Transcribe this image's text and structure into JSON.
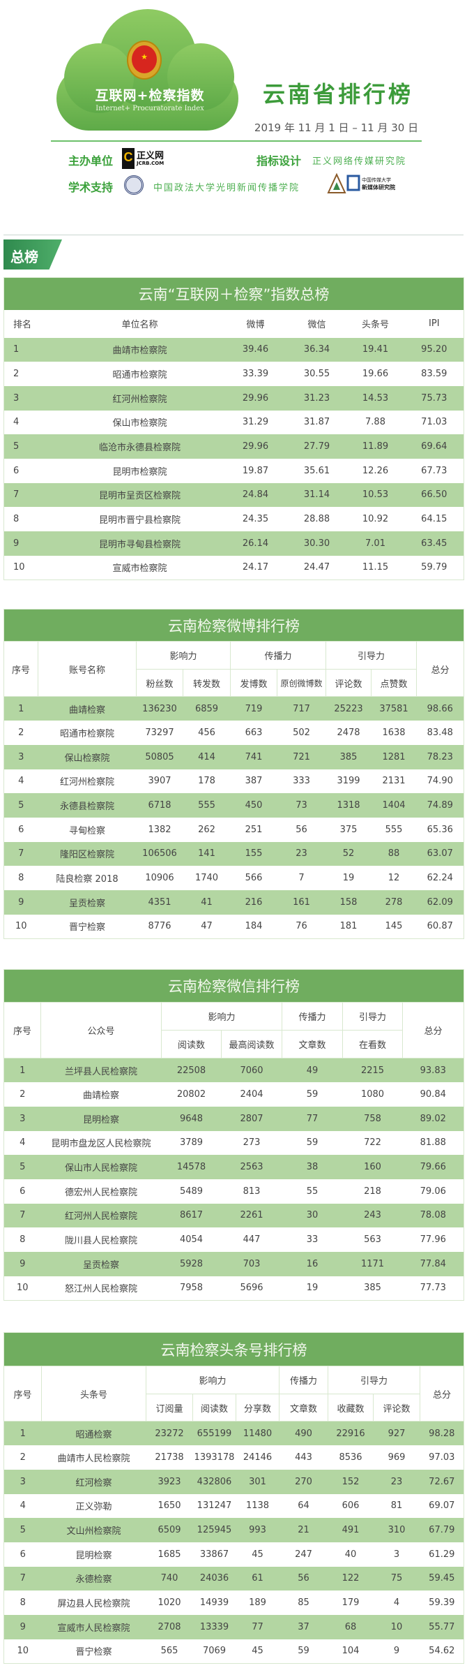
{
  "colors": {
    "accent": "#70ad5f",
    "row_alt": "#b3d6a2",
    "title_green": "#3c9b3a"
  },
  "header": {
    "cloud_title_cn": "互联网+检察指数",
    "cloud_title_en": "Internet+ Procuratorate Index",
    "title": "云南省排行榜",
    "date": "2019 年 11 月 1 日 – 11 月 30 日",
    "sponsor_label": "主办单位",
    "sponsor_logo": "正义网",
    "sponsor_logo_sub": "JCRB.COM",
    "design_label": "指标设计",
    "design_value": "正义网络传媒研究院",
    "academic_label": "学术支持",
    "academic_value": "中国政法大学光明新闻传播学院",
    "cuc_logo": "中国传媒大学 新媒体研究院"
  },
  "section_tag": "总榜",
  "tables": [
    {
      "title": "云南“互联网＋检察”指数总榜",
      "columns": [
        "排名",
        "单位名称",
        "微博",
        "微信",
        "头条号",
        "IPI"
      ],
      "rows": [
        [
          "1",
          "曲靖市检察院",
          "39.46",
          "36.34",
          "19.41",
          "95.20"
        ],
        [
          "2",
          "昭通市检察院",
          "33.39",
          "30.55",
          "19.66",
          "83.59"
        ],
        [
          "3",
          "红河州检察院",
          "29.96",
          "31.23",
          "14.53",
          "75.73"
        ],
        [
          "4",
          "保山市检察院",
          "31.29",
          "31.87",
          "7.88",
          "71.03"
        ],
        [
          "5",
          "临沧市永德县检察院",
          "29.96",
          "27.79",
          "11.89",
          "69.64"
        ],
        [
          "6",
          "昆明市检察院",
          "19.87",
          "35.61",
          "12.26",
          "67.73"
        ],
        [
          "7",
          "昆明市呈贡区检察院",
          "24.84",
          "31.14",
          "10.53",
          "66.50"
        ],
        [
          "8",
          "昆明市晋宁县检察院",
          "24.35",
          "28.88",
          "10.92",
          "64.15"
        ],
        [
          "9",
          "昆明市寻甸县检察院",
          "26.14",
          "30.30",
          "7.01",
          "63.45"
        ],
        [
          "10",
          "宣威市检察院",
          "24.17",
          "24.47",
          "11.15",
          "59.79"
        ]
      ]
    },
    {
      "title": "云南检察微博排行榜",
      "col_no": "序号",
      "col_name": "账号名称",
      "col_total": "总分",
      "groups": [
        "影响力",
        "传播力",
        "引导力"
      ],
      "subcolumns": [
        "粉丝数",
        "转发数",
        "发博数",
        "原创微博数",
        "评论数",
        "点赞数"
      ],
      "rows": [
        [
          "1",
          "曲靖检察",
          "136230",
          "6859",
          "719",
          "717",
          "25223",
          "37581",
          "98.66"
        ],
        [
          "2",
          "昭通市检察院",
          "73297",
          "456",
          "663",
          "502",
          "2478",
          "1638",
          "83.48"
        ],
        [
          "3",
          "保山检察院",
          "50805",
          "414",
          "741",
          "721",
          "385",
          "1281",
          "78.23"
        ],
        [
          "4",
          "红河州检察院",
          "3907",
          "178",
          "387",
          "333",
          "3199",
          "2131",
          "74.90"
        ],
        [
          "5",
          "永德县检察院",
          "6718",
          "555",
          "450",
          "73",
          "1318",
          "1404",
          "74.89"
        ],
        [
          "6",
          "寻甸检察",
          "1382",
          "262",
          "251",
          "56",
          "375",
          "555",
          "65.36"
        ],
        [
          "7",
          "隆阳区检察院",
          "106506",
          "141",
          "155",
          "23",
          "52",
          "88",
          "63.07"
        ],
        [
          "8",
          "陆良检察 2018",
          "10906",
          "1740",
          "566",
          "7",
          "19",
          "12",
          "62.24"
        ],
        [
          "9",
          "呈贡检察",
          "4351",
          "41",
          "216",
          "161",
          "158",
          "278",
          "62.09"
        ],
        [
          "10",
          "晋宁检察",
          "8776",
          "47",
          "184",
          "76",
          "181",
          "145",
          "60.87"
        ]
      ]
    },
    {
      "title": "云南检察微信排行榜",
      "col_no": "序号",
      "col_name": "公众号",
      "col_total": "总分",
      "groups": [
        "影响力",
        "传播力",
        "引导力"
      ],
      "subcolumns": [
        "阅读数",
        "最高阅读数",
        "文章数",
        "在看数"
      ],
      "rows": [
        [
          "1",
          "兰坪县人民检察院",
          "22508",
          "7060",
          "49",
          "2215",
          "93.83"
        ],
        [
          "2",
          "曲靖检察",
          "20802",
          "2404",
          "59",
          "1080",
          "90.84"
        ],
        [
          "3",
          "昆明检察",
          "9648",
          "2807",
          "77",
          "758",
          "89.02"
        ],
        [
          "4",
          "昆明市盘龙区人民检察院",
          "3789",
          "273",
          "59",
          "722",
          "81.88"
        ],
        [
          "5",
          "保山市人民检察院",
          "14578",
          "2563",
          "38",
          "160",
          "79.66"
        ],
        [
          "6",
          "德宏州人民检察院",
          "5489",
          "813",
          "55",
          "218",
          "79.06"
        ],
        [
          "7",
          "红河州人民检察院",
          "8617",
          "2261",
          "30",
          "243",
          "78.08"
        ],
        [
          "8",
          "陇川县人民检察院",
          "4054",
          "447",
          "33",
          "563",
          "77.96"
        ],
        [
          "9",
          "呈贡检察",
          "5928",
          "703",
          "16",
          "1171",
          "77.84"
        ],
        [
          "10",
          "怒江州人民检察院",
          "7958",
          "5696",
          "19",
          "385",
          "77.73"
        ]
      ]
    },
    {
      "title": "云南检察头条号排行榜",
      "col_no": "序号",
      "col_name": "头条号",
      "col_total": "总分",
      "groups": [
        "影响力",
        "传播力",
        "引导力"
      ],
      "subcolumns": [
        "订阅量",
        "阅读数",
        "分享数",
        "文章数",
        "收藏数",
        "评论数"
      ],
      "rows": [
        [
          "1",
          "昭通检察",
          "23272",
          "655199",
          "11480",
          "490",
          "22916",
          "927",
          "98.28"
        ],
        [
          "2",
          "曲靖市人民检察院",
          "21738",
          "1393178",
          "24146",
          "443",
          "8536",
          "969",
          "97.03"
        ],
        [
          "3",
          "红河检察",
          "3923",
          "432806",
          "301",
          "270",
          "152",
          "23",
          "72.67"
        ],
        [
          "4",
          "正义弥勒",
          "1650",
          "131247",
          "1138",
          "64",
          "606",
          "81",
          "69.07"
        ],
        [
          "5",
          "文山州检察院",
          "6509",
          "125945",
          "993",
          "21",
          "491",
          "310",
          "67.79"
        ],
        [
          "6",
          "昆明检察",
          "1685",
          "33867",
          "45",
          "247",
          "40",
          "3",
          "61.29"
        ],
        [
          "7",
          "永德检察",
          "740",
          "24036",
          "61",
          "56",
          "122",
          "75",
          "59.45"
        ],
        [
          "8",
          "屏边县人民检察院",
          "1020",
          "14939",
          "189",
          "85",
          "179",
          "4",
          "59.39"
        ],
        [
          "9",
          "宣威市人民检察院",
          "2708",
          "13339",
          "77",
          "37",
          "68",
          "10",
          "55.77"
        ],
        [
          "10",
          "晋宁检察",
          "565",
          "7069",
          "45",
          "59",
          "104",
          "9",
          "54.62"
        ]
      ]
    }
  ]
}
